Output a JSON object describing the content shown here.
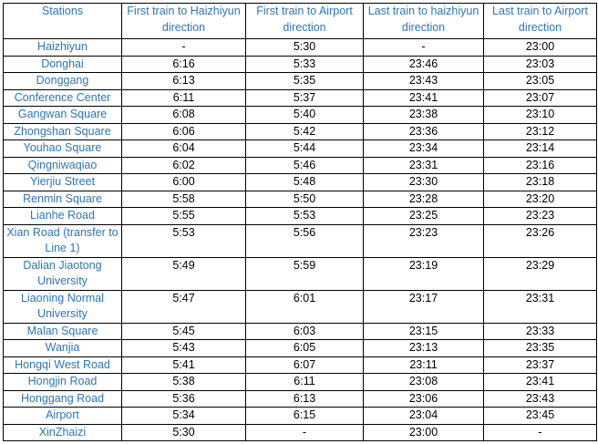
{
  "table": {
    "header": [
      "Stations",
      "First train to Haizhiyun direction",
      "First train to Airport direction",
      "Last train to haizhiyun direction",
      "Last train to Airport direction"
    ],
    "rows": [
      [
        "Haizhiyun",
        "-",
        "5:30",
        "-",
        "23:00"
      ],
      [
        "Donghai",
        "6:16",
        "5:33",
        "23:46",
        "23:03"
      ],
      [
        "Donggang",
        "6:13",
        "5:35",
        "23:43",
        "23:05"
      ],
      [
        "Conference Center",
        "6:11",
        "5:37",
        "23:41",
        "23:07"
      ],
      [
        "Gangwan Square",
        "6:08",
        "5:40",
        "23:38",
        "23:10"
      ],
      [
        "Zhongshan Square",
        "6:06",
        "5:42",
        "23:36",
        "23:12"
      ],
      [
        "Youhao Square",
        "6:04",
        "5:44",
        "23:34",
        "23:14"
      ],
      [
        "Qingniwaqiao",
        "6:02",
        "5:46",
        "23:31",
        "23:16"
      ],
      [
        "Yierjiu Street",
        "6:00",
        "5:48",
        "23:30",
        "23:18"
      ],
      [
        "Renmin Square",
        "5:58",
        "5:50",
        "23:28",
        "23:20"
      ],
      [
        "Lianhe Road",
        "5:55",
        "5:53",
        "23:25",
        "23:23"
      ],
      [
        "Xian Road (transfer to Line 1)",
        "5:53",
        "5:56",
        "23:23",
        "23:26"
      ],
      [
        "Dalian Jiaotong University",
        "5:49",
        "5:59",
        "23:19",
        "23:29"
      ],
      [
        "Liaoning Normal University",
        "5:47",
        "6:01",
        "23:17",
        "23:31"
      ],
      [
        "Malan Square",
        "5:45",
        "6:03",
        "23:15",
        "23:33"
      ],
      [
        "Wanjia",
        "5:43",
        "6:05",
        "23:13",
        "23:35"
      ],
      [
        "Hongqi West Road",
        "5:41",
        "6:07",
        "23:11",
        "23:37"
      ],
      [
        "Hongjin Road",
        "5:38",
        "6:11",
        "23:08",
        "23:41"
      ],
      [
        "Honggang Road",
        "5:36",
        "6:13",
        "23:06",
        "23:43"
      ],
      [
        "Airport",
        "5:34",
        "6:15",
        "23:04",
        "23:45"
      ],
      [
        "XinZhaizi",
        "5:30",
        "-",
        "23:00",
        "-"
      ]
    ]
  }
}
